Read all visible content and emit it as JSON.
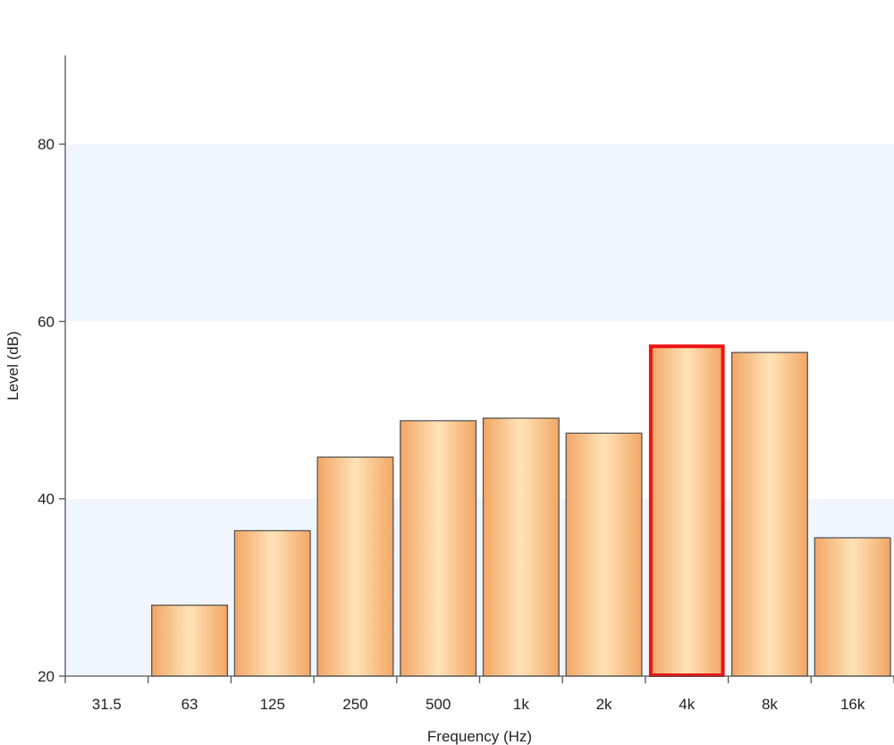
{
  "chart_data": {
    "type": "bar",
    "title": "",
    "xlabel": "Frequency (Hz)",
    "ylabel": "Level (dB)",
    "categories": [
      "31.5",
      "63",
      "125",
      "250",
      "500",
      "1k",
      "2k",
      "4k",
      "8k",
      "16k"
    ],
    "values": [
      null,
      28,
      36.4,
      44.7,
      48.8,
      49.1,
      47.4,
      57.3,
      56.5,
      35.6
    ],
    "highlighted_category": "4k",
    "ylim": [
      20,
      90
    ],
    "yticks": [
      20,
      40,
      60,
      80
    ],
    "shaded_bands": [
      [
        20,
        40
      ],
      [
        60,
        80
      ]
    ],
    "grid": false,
    "legend": "none",
    "colors": {
      "bar_center": "#ffe3b8",
      "bar_edge": "#f2a665",
      "bar_outline": "#555555",
      "highlight_outline": "#ee1111",
      "band": "#f1f6fe",
      "axis": "#555555"
    }
  }
}
